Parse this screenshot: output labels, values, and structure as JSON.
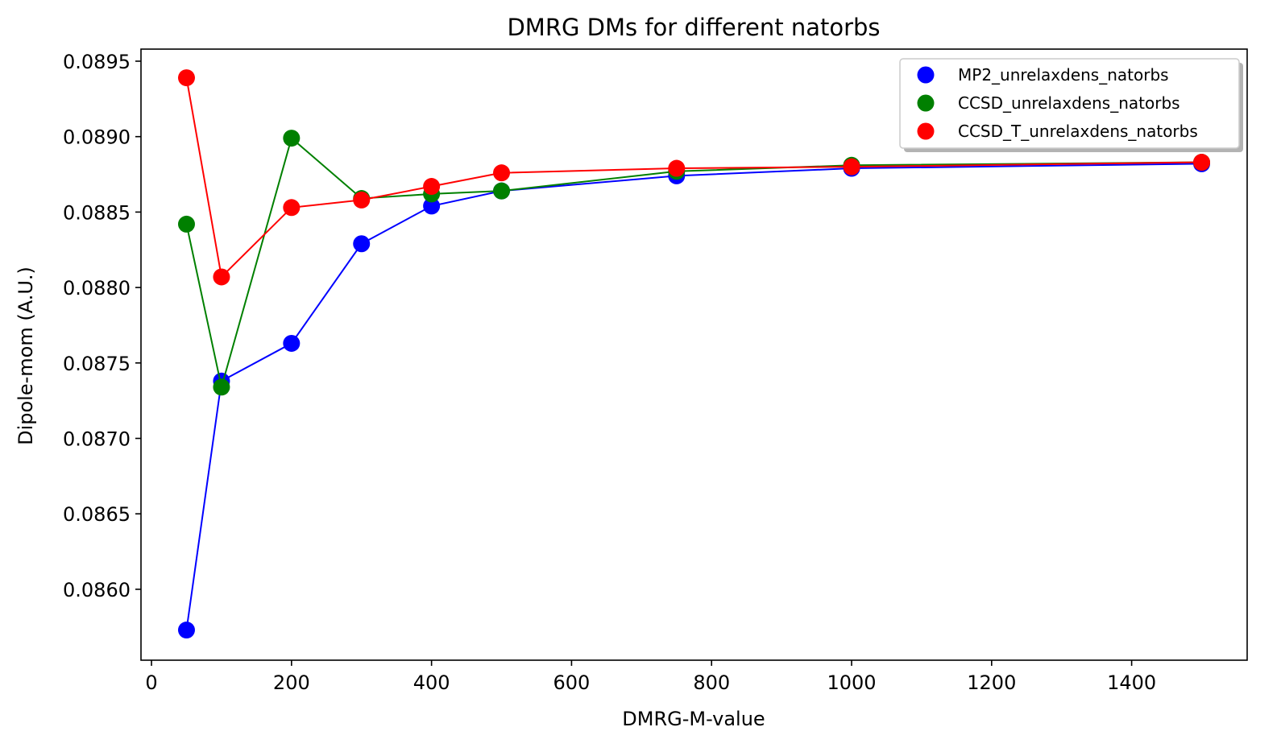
{
  "chart_data": {
    "type": "line",
    "title": "DMRG DMs for different natorbs",
    "xlabel": "DMRG-M-value",
    "ylabel": "Dipole-mom (A.U.)",
    "xlim": [
      -15,
      1565
    ],
    "ylim": [
      0.08553,
      0.08958
    ],
    "xticks": [
      0,
      200,
      400,
      600,
      800,
      1000,
      1200,
      1400
    ],
    "xtick_labels": [
      "0",
      "200",
      "400",
      "600",
      "800",
      "1000",
      "1200",
      "1400"
    ],
    "yticks": [
      0.086,
      0.0865,
      0.087,
      0.0875,
      0.088,
      0.0885,
      0.089,
      0.0895
    ],
    "ytick_labels": [
      "0.0860",
      "0.0865",
      "0.0870",
      "0.0875",
      "0.0880",
      "0.0885",
      "0.0890",
      "0.0895"
    ],
    "grid": false,
    "legend_position": "top-right",
    "x": [
      50,
      100,
      200,
      300,
      400,
      500,
      750,
      1000,
      1500
    ],
    "series": [
      {
        "name": "MP2_unrelaxdens_natorbs",
        "color": "#0000ff",
        "values": [
          0.08573,
          0.08738,
          0.08763,
          0.08829,
          0.08854,
          0.08864,
          0.08874,
          0.08879,
          0.08882
        ]
      },
      {
        "name": "CCSD_unrelaxdens_natorbs",
        "color": "#008000",
        "values": [
          0.08842,
          0.08734,
          0.08899,
          0.08859,
          0.08862,
          0.08864,
          0.08877,
          0.08881,
          0.08883
        ]
      },
      {
        "name": "CCSD_T_unrelaxdens_natorbs",
        "color": "#ff0000",
        "values": [
          0.08939,
          0.08807,
          0.08853,
          0.08858,
          0.08867,
          0.08876,
          0.08879,
          0.0888,
          0.08883
        ]
      }
    ]
  }
}
